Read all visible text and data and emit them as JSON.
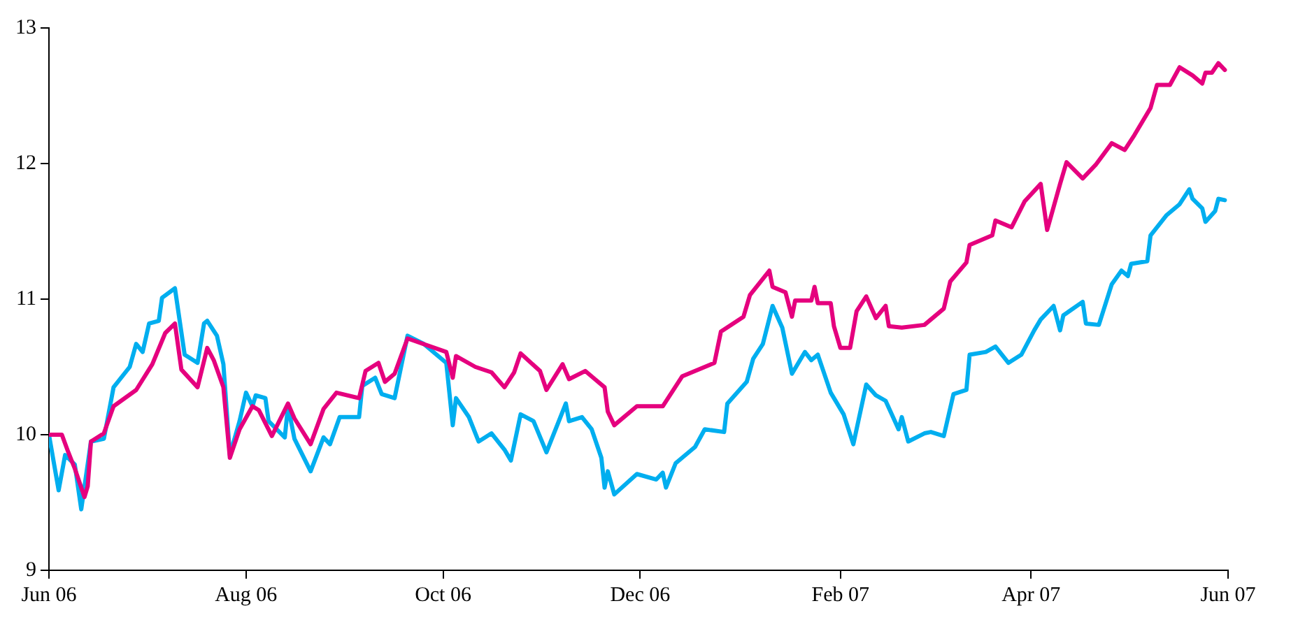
{
  "chart_data": {
    "type": "line",
    "xlim": [
      "2006-06-01",
      "2007-06-01"
    ],
    "ylim": [
      9,
      13
    ],
    "yticks": [
      9,
      10,
      11,
      12,
      13
    ],
    "xticks": [
      {
        "value": "2006-06-01",
        "label": "Jun 06"
      },
      {
        "value": "2006-08-01",
        "label": "Aug 06"
      },
      {
        "value": "2006-10-01",
        "label": "Oct 06"
      },
      {
        "value": "2006-12-01",
        "label": "Dec 06"
      },
      {
        "value": "2007-02-01",
        "label": "Feb 07"
      },
      {
        "value": "2007-04-01",
        "label": "Apr 07"
      },
      {
        "value": "2007-06-01",
        "label": "Jun 07"
      }
    ],
    "grid": false,
    "legend": false,
    "marker": "none",
    "line_style": "solid",
    "series": [
      {
        "color": "#e5007e",
        "x": [
          "2006-06-01",
          "2006-06-05",
          "2006-06-07",
          "2006-06-09",
          "2006-06-12",
          "2006-06-13",
          "2006-06-14",
          "2006-06-18",
          "2006-06-21",
          "2006-06-28",
          "2006-07-03",
          "2006-07-07",
          "2006-07-10",
          "2006-07-12",
          "2006-07-17",
          "2006-07-20",
          "2006-07-22",
          "2006-07-25",
          "2006-07-27",
          "2006-07-30",
          "2006-08-03",
          "2006-08-05",
          "2006-08-09",
          "2006-08-14",
          "2006-08-16",
          "2006-08-21",
          "2006-08-25",
          "2006-08-29",
          "2006-09-05",
          "2006-09-07",
          "2006-09-11",
          "2006-09-13",
          "2006-09-16",
          "2006-09-20",
          "2006-10-02",
          "2006-10-04",
          "2006-10-05",
          "2006-10-11",
          "2006-10-16",
          "2006-10-20",
          "2006-10-23",
          "2006-10-25",
          "2006-10-31",
          "2006-11-02",
          "2006-11-07",
          "2006-11-09",
          "2006-11-14",
          "2006-11-17",
          "2006-11-20",
          "2006-11-21",
          "2006-11-23",
          "2006-11-30",
          "2006-12-08",
          "2006-12-14",
          "2006-12-24",
          "2006-12-26",
          "2007-01-02",
          "2007-01-04",
          "2007-01-10",
          "2007-01-11",
          "2007-01-15",
          "2007-01-17",
          "2007-01-18",
          "2007-01-23",
          "2007-01-24",
          "2007-01-25",
          "2007-01-29",
          "2007-01-30",
          "2007-02-01",
          "2007-02-04",
          "2007-02-06",
          "2007-02-09",
          "2007-02-12",
          "2007-02-15",
          "2007-02-16",
          "2007-02-20",
          "2007-02-27",
          "2007-03-05",
          "2007-03-07",
          "2007-03-12",
          "2007-03-13",
          "2007-03-20",
          "2007-03-21",
          "2007-03-26",
          "2007-03-30",
          "2007-04-04",
          "2007-04-06",
          "2007-04-10",
          "2007-04-12",
          "2007-04-17",
          "2007-04-21",
          "2007-04-26",
          "2007-04-30",
          "2007-05-03",
          "2007-05-08",
          "2007-05-10",
          "2007-05-14",
          "2007-05-17",
          "2007-05-21",
          "2007-05-24",
          "2007-05-25",
          "2007-05-27",
          "2007-05-29",
          "2007-05-31"
        ],
        "values": [
          10.0,
          10.0,
          9.87,
          9.75,
          9.54,
          9.62,
          9.95,
          10.01,
          10.21,
          10.33,
          10.52,
          10.75,
          10.82,
          10.48,
          10.35,
          10.64,
          10.55,
          10.35,
          9.83,
          10.04,
          10.21,
          10.18,
          9.99,
          10.23,
          10.12,
          9.93,
          10.19,
          10.31,
          10.27,
          10.47,
          10.53,
          10.39,
          10.45,
          10.71,
          10.61,
          10.42,
          10.58,
          10.5,
          10.46,
          10.35,
          10.46,
          10.6,
          10.47,
          10.33,
          10.52,
          10.41,
          10.47,
          10.41,
          10.35,
          10.17,
          10.07,
          10.21,
          10.21,
          10.43,
          10.53,
          10.76,
          10.87,
          11.03,
          11.21,
          11.09,
          11.05,
          10.87,
          10.99,
          10.99,
          11.09,
          10.97,
          10.97,
          10.8,
          10.64,
          10.64,
          10.91,
          11.02,
          10.86,
          10.95,
          10.8,
          10.79,
          10.81,
          10.93,
          11.13,
          11.27,
          11.4,
          11.47,
          11.58,
          11.53,
          11.72,
          11.85,
          11.51,
          11.85,
          12.01,
          11.89,
          11.99,
          12.15,
          12.1,
          12.21,
          12.41,
          12.58,
          12.58,
          12.71,
          12.65,
          12.59,
          12.67,
          12.67,
          12.74,
          12.69
        ]
      },
      {
        "color": "#00aeef",
        "x": [
          "2006-06-01",
          "2006-06-04",
          "2006-06-06",
          "2006-06-09",
          "2006-06-11",
          "2006-06-14",
          "2006-06-18",
          "2006-06-21",
          "2006-06-26",
          "2006-06-28",
          "2006-06-30",
          "2006-07-02",
          "2006-07-05",
          "2006-07-06",
          "2006-07-10",
          "2006-07-13",
          "2006-07-17",
          "2006-07-19",
          "2006-07-20",
          "2006-07-23",
          "2006-07-25",
          "2006-07-27",
          "2006-07-30",
          "2006-08-01",
          "2006-08-03",
          "2006-08-04",
          "2006-08-07",
          "2006-08-08",
          "2006-08-13",
          "2006-08-14",
          "2006-08-16",
          "2006-08-21",
          "2006-08-25",
          "2006-08-27",
          "2006-08-30",
          "2006-09-05",
          "2006-09-06",
          "2006-09-10",
          "2006-09-12",
          "2006-09-16",
          "2006-09-20",
          "2006-09-25",
          "2006-10-02",
          "2006-10-04",
          "2006-10-05",
          "2006-10-09",
          "2006-10-12",
          "2006-10-16",
          "2006-10-20",
          "2006-10-22",
          "2006-10-25",
          "2006-10-29",
          "2006-11-02",
          "2006-11-08",
          "2006-11-09",
          "2006-11-13",
          "2006-11-16",
          "2006-11-19",
          "2006-11-20",
          "2006-11-21",
          "2006-11-23",
          "2006-11-30",
          "2006-12-06",
          "2006-12-08",
          "2006-12-09",
          "2006-12-12",
          "2006-12-18",
          "2006-12-21",
          "2006-12-27",
          "2006-12-28",
          "2007-01-03",
          "2007-01-05",
          "2007-01-08",
          "2007-01-11",
          "2007-01-14",
          "2007-01-17",
          "2007-01-21",
          "2007-01-23",
          "2007-01-25",
          "2007-01-29",
          "2007-02-02",
          "2007-02-05",
          "2007-02-09",
          "2007-02-12",
          "2007-02-15",
          "2007-02-19",
          "2007-02-20",
          "2007-02-22",
          "2007-02-27",
          "2007-03-01",
          "2007-03-05",
          "2007-03-08",
          "2007-03-12",
          "2007-03-13",
          "2007-03-18",
          "2007-03-21",
          "2007-03-25",
          "2007-03-29",
          "2007-04-02",
          "2007-04-04",
          "2007-04-08",
          "2007-04-10",
          "2007-04-11",
          "2007-04-17",
          "2007-04-18",
          "2007-04-22",
          "2007-04-26",
          "2007-04-29",
          "2007-05-01",
          "2007-05-02",
          "2007-05-07",
          "2007-05-08",
          "2007-05-13",
          "2007-05-17",
          "2007-05-20",
          "2007-05-21",
          "2007-05-24",
          "2007-05-25",
          "2007-05-28",
          "2007-05-29",
          "2007-05-31"
        ],
        "values": [
          10.0,
          9.59,
          9.85,
          9.78,
          9.45,
          9.95,
          9.97,
          10.35,
          10.5,
          10.67,
          10.61,
          10.82,
          10.84,
          11.01,
          11.08,
          10.59,
          10.53,
          10.82,
          10.84,
          10.73,
          10.52,
          9.85,
          10.1,
          10.31,
          10.21,
          10.29,
          10.27,
          10.1,
          9.98,
          10.21,
          9.97,
          9.73,
          9.98,
          9.93,
          10.13,
          10.13,
          10.36,
          10.42,
          10.3,
          10.27,
          10.73,
          10.67,
          10.53,
          10.07,
          10.27,
          10.13,
          9.95,
          10.01,
          9.89,
          9.81,
          10.15,
          10.1,
          9.87,
          10.23,
          10.1,
          10.13,
          10.04,
          9.83,
          9.61,
          9.73,
          9.56,
          9.71,
          9.67,
          9.72,
          9.61,
          9.79,
          9.91,
          10.04,
          10.02,
          10.23,
          10.39,
          10.56,
          10.67,
          10.95,
          10.79,
          10.45,
          10.61,
          10.55,
          10.59,
          10.31,
          10.15,
          9.93,
          10.37,
          10.29,
          10.25,
          10.04,
          10.13,
          9.95,
          10.01,
          10.02,
          9.99,
          10.3,
          10.33,
          10.59,
          10.61,
          10.65,
          10.53,
          10.59,
          10.77,
          10.85,
          10.95,
          10.77,
          10.88,
          10.98,
          10.82,
          10.81,
          11.11,
          11.21,
          11.17,
          11.26,
          11.28,
          11.47,
          11.62,
          11.7,
          11.81,
          11.74,
          11.67,
          11.57,
          11.65,
          11.74,
          11.73
        ]
      }
    ]
  }
}
